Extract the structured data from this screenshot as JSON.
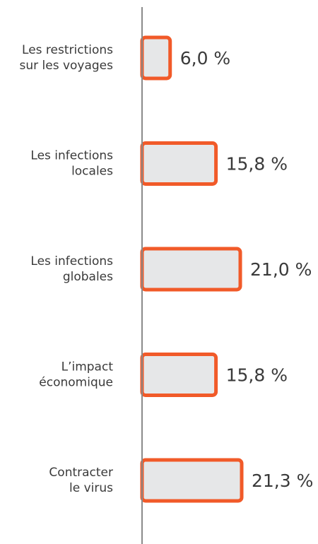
{
  "chart_data": {
    "type": "bar",
    "orientation": "horizontal",
    "categories": [
      "Les restrictions\nsur les voyages",
      "Les infections\nlocales",
      "Les infections\nglobales",
      "L’impact\néconomique",
      "Contracter\nle virus"
    ],
    "values": [
      6.0,
      15.8,
      21.0,
      15.8,
      21.3
    ],
    "value_labels": [
      "6,0 %",
      "15,8 %",
      "21,0 %",
      "15,8 %",
      "21,3 %"
    ],
    "color": "#e6e7e8",
    "edge_color": "#f15a29",
    "axis_color": "#8a8a8a"
  }
}
